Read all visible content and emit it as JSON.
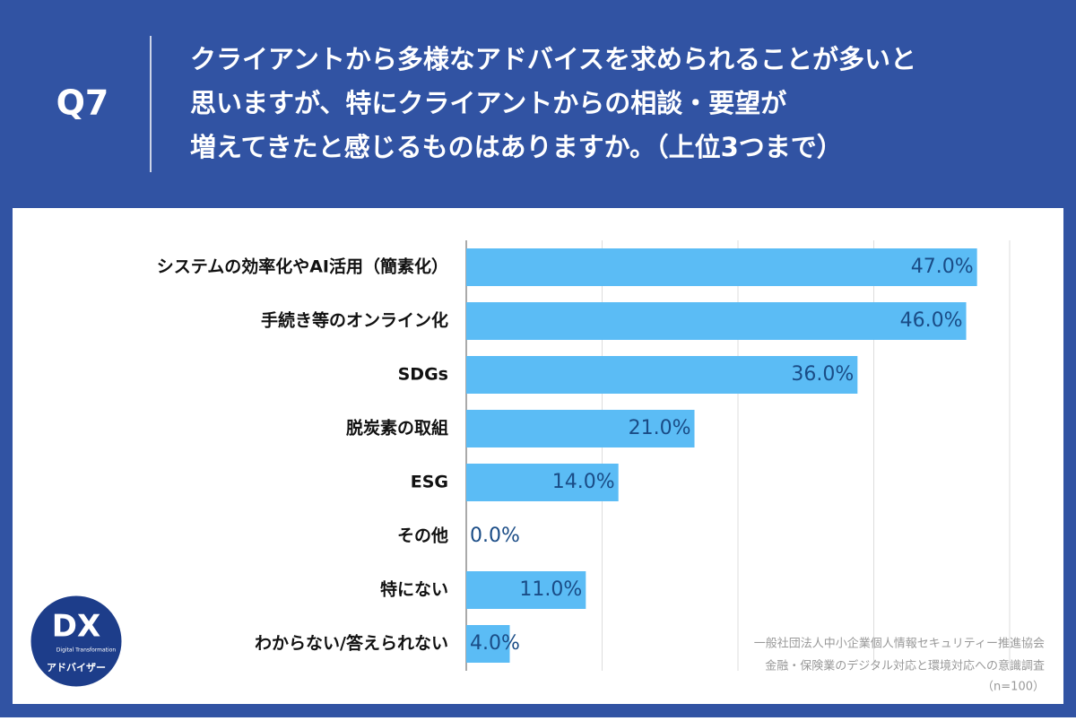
{
  "header": {
    "label": "Q7",
    "question": [
      "クライアントから多様なアドバイスを求められることが多いと",
      "思いますが、特にクライアントからの相談・要望が",
      "増えてきたと感じるものはありますか。（上位3つまで）"
    ]
  },
  "chart_data": {
    "type": "bar",
    "orientation": "horizontal",
    "categories": [
      "システムの効率化やAI活用（簡素化）",
      "手続き等のオンライン化",
      "SDGs",
      "脱炭素の取組",
      "ESG",
      "その他",
      "特にない",
      "わからない/答えられない"
    ],
    "values": [
      47,
      46,
      36,
      21,
      14,
      0,
      11,
      4
    ],
    "value_labels": [
      "47.0%",
      "46.0%",
      "36.0%",
      "21.0%",
      "14.0%",
      "0.0%",
      "11.0%",
      "4.0%"
    ],
    "color": "#5bbcf5",
    "xlim": [
      0,
      50
    ],
    "xticks": [
      0,
      12.5,
      25,
      37.5,
      50
    ],
    "grid": true
  },
  "source": [
    "一般社団法人中小企業個人情報セキュリティー推進協会",
    "金融・保険業のデジタル対応と環境対応への意識調査",
    "（n=100）"
  ],
  "logo": {
    "mark": "DX",
    "sub": "Digital Transformation",
    "name": "アドバイザー"
  }
}
